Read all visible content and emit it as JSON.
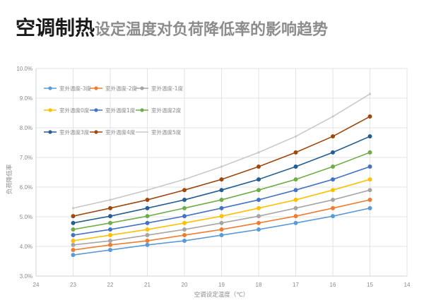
{
  "title": {
    "bold": "空调制热",
    "rest": "设定温度对负荷降低率的影响趋势"
  },
  "chart_data": {
    "type": "line",
    "title": "空调制热设定温度对负荷降低率的影响趋势",
    "xlabel": "空调设定温度（℃）",
    "ylabel": "负荷降低率",
    "x_ticks": [
      24,
      23,
      22,
      21,
      20,
      19,
      18,
      17,
      16,
      15,
      14
    ],
    "y_ticks": [
      "3.0%",
      "4.0%",
      "5.0%",
      "6.0%",
      "7.0%",
      "8.0%",
      "9.0%",
      "10.0%"
    ],
    "xlim": [
      24,
      14
    ],
    "ylim": [
      3.0,
      10.0
    ],
    "x_reversed": true,
    "grid": true,
    "legend_position": "top-left inside, 3 columns",
    "x": [
      23,
      22,
      21,
      20,
      19,
      18,
      17,
      16,
      15
    ],
    "series": [
      {
        "name": "室外温度-3度",
        "color": "#5b9bd5",
        "marker": true,
        "values": [
          3.71,
          3.88,
          4.05,
          4.19,
          4.38,
          4.57,
          4.79,
          5.02,
          5.29
        ]
      },
      {
        "name": "室外温度-2度",
        "color": "#ed7d31",
        "marker": true,
        "values": [
          3.88,
          4.05,
          4.19,
          4.38,
          4.57,
          4.79,
          5.02,
          5.29,
          5.57
        ]
      },
      {
        "name": "室外温度-1度",
        "color": "#a5a5a5",
        "marker": true,
        "values": [
          4.05,
          4.19,
          4.38,
          4.57,
          4.79,
          5.02,
          5.29,
          5.57,
          5.9
        ]
      },
      {
        "name": "室外温度0度",
        "color": "#ffc000",
        "marker": true,
        "values": [
          4.19,
          4.38,
          4.57,
          4.79,
          5.02,
          5.29,
          5.57,
          5.9,
          6.26
        ]
      },
      {
        "name": "室外温度1度",
        "color": "#4472c4",
        "marker": true,
        "values": [
          4.38,
          4.57,
          4.79,
          5.02,
          5.29,
          5.57,
          5.9,
          6.26,
          6.69
        ]
      },
      {
        "name": "室外温度2度",
        "color": "#70ad47",
        "marker": true,
        "values": [
          4.57,
          4.79,
          5.02,
          5.29,
          5.57,
          5.9,
          6.26,
          6.69,
          7.17
        ]
      },
      {
        "name": "室外温度3度",
        "color": "#255e91",
        "marker": true,
        "values": [
          4.79,
          5.02,
          5.29,
          5.57,
          5.9,
          6.26,
          6.69,
          7.17,
          7.71
        ]
      },
      {
        "name": "室外温度4度",
        "color": "#9e480e",
        "marker": true,
        "values": [
          5.02,
          5.29,
          5.57,
          5.9,
          6.26,
          6.69,
          7.17,
          7.71,
          8.38
        ]
      },
      {
        "name": "室外温度5度",
        "color": "#c9c9c9",
        "marker": false,
        "values": [
          5.29,
          5.57,
          5.9,
          6.26,
          6.69,
          7.17,
          7.71,
          8.38,
          9.14
        ]
      }
    ]
  }
}
